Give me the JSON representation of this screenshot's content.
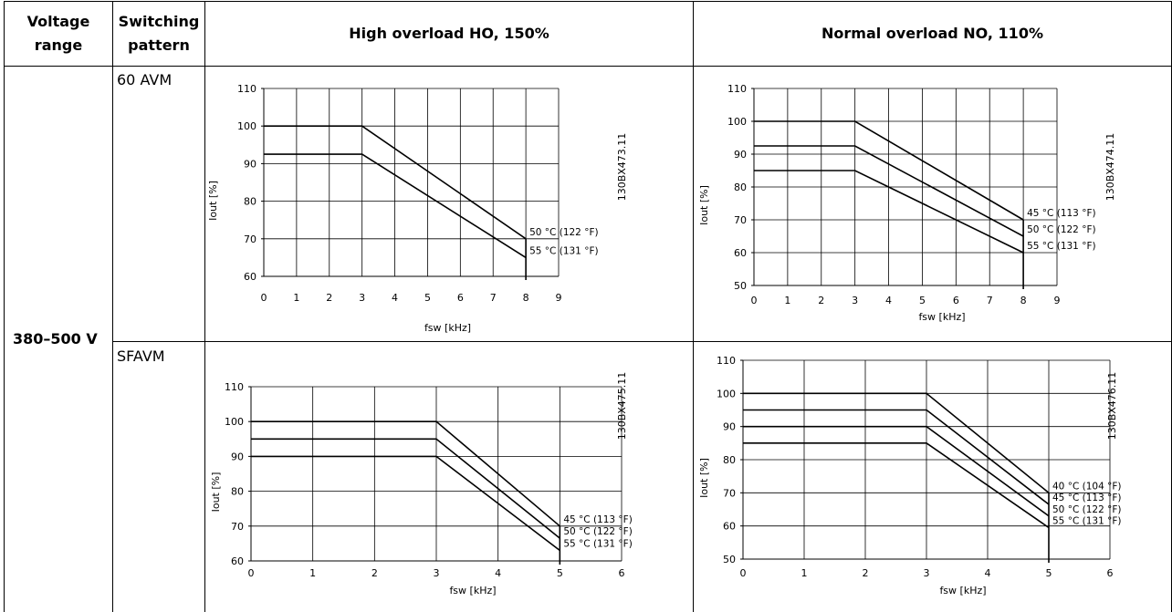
{
  "table": {
    "headers": {
      "voltage_range": [
        "Voltage",
        "range"
      ],
      "switching_pattern": [
        "Switching",
        "pattern"
      ],
      "high_overload": "High overload HO, 150%",
      "normal_overload": "Normal overload NO, 110%"
    },
    "voltage_range_value": "380–500 V",
    "patterns": [
      "60 AVM",
      "SFAVM"
    ]
  },
  "chart_data": [
    {
      "id": "ho-60avm",
      "type": "line",
      "code": "130BX473.11",
      "xlabel": "fsw [kHz]",
      "ylabel": "Iout [%]",
      "xlim": [
        0,
        9
      ],
      "ylim": [
        60,
        110
      ],
      "xticks": [
        0,
        1,
        2,
        3,
        4,
        5,
        6,
        7,
        8,
        9
      ],
      "yticks": [
        60,
        70,
        80,
        90,
        100,
        110
      ],
      "grid": true,
      "series": [
        {
          "name": "50 °C (122 °F)",
          "x": [
            0,
            3,
            8
          ],
          "y": [
            100,
            100,
            70
          ]
        },
        {
          "name": "55 °C (131 °F)",
          "x": [
            0,
            3,
            8
          ],
          "y": [
            92.5,
            92.5,
            65
          ]
        }
      ]
    },
    {
      "id": "no-60avm",
      "type": "line",
      "code": "130BX474.11",
      "xlabel": "fsw [kHz]",
      "ylabel": "Iout [%]",
      "xlim": [
        0,
        9
      ],
      "ylim": [
        50,
        110
      ],
      "xticks": [
        0,
        1,
        2,
        3,
        4,
        5,
        6,
        7,
        8,
        9
      ],
      "yticks": [
        50,
        60,
        70,
        80,
        90,
        100,
        110
      ],
      "grid": true,
      "series": [
        {
          "name": "45 °C (113 °F)",
          "x": [
            0,
            3,
            8
          ],
          "y": [
            100,
            100,
            70
          ]
        },
        {
          "name": "50 °C (122 °F)",
          "x": [
            0,
            3,
            8
          ],
          "y": [
            92.5,
            92.5,
            65
          ]
        },
        {
          "name": "55 °C (131 °F)",
          "x": [
            0,
            3,
            8
          ],
          "y": [
            85,
            85,
            60
          ]
        }
      ]
    },
    {
      "id": "ho-sfavm",
      "type": "line",
      "code": "130BX475.11",
      "xlabel": "fsw [kHz]",
      "ylabel": "Iout [%]",
      "xlim": [
        0,
        6
      ],
      "ylim": [
        60,
        110
      ],
      "xticks": [
        0,
        1,
        2,
        3,
        4,
        5,
        6
      ],
      "yticks": [
        60,
        70,
        80,
        90,
        100,
        110
      ],
      "grid": true,
      "series": [
        {
          "name": "45 °C (113 °F)",
          "x": [
            0,
            3,
            5
          ],
          "y": [
            100,
            100,
            70
          ]
        },
        {
          "name": "50 °C (122 °F)",
          "x": [
            0,
            3,
            5
          ],
          "y": [
            95,
            95,
            66.5
          ]
        },
        {
          "name": "55 °C (131 °F)",
          "x": [
            0,
            3,
            5
          ],
          "y": [
            90,
            90,
            63
          ]
        }
      ]
    },
    {
      "id": "no-sfavm",
      "type": "line",
      "code": "130BX476.11",
      "xlabel": "fsw [kHz]",
      "ylabel": "Iout [%]",
      "xlim": [
        0,
        6
      ],
      "ylim": [
        50,
        110
      ],
      "xticks": [
        0,
        1,
        2,
        3,
        4,
        5,
        6
      ],
      "yticks": [
        50,
        60,
        70,
        80,
        90,
        100,
        110
      ],
      "grid": true,
      "series": [
        {
          "name": "40 °C (104 °F)",
          "x": [
            0,
            3,
            5
          ],
          "y": [
            100,
            100,
            70
          ]
        },
        {
          "name": "45 °C (113 °F)",
          "x": [
            0,
            3,
            5
          ],
          "y": [
            95,
            95,
            66.5
          ]
        },
        {
          "name": "50 °C (122 °F)",
          "x": [
            0,
            3,
            5
          ],
          "y": [
            90,
            90,
            63
          ]
        },
        {
          "name": "55 °C (131 °F)",
          "x": [
            0,
            3,
            5
          ],
          "y": [
            85,
            85,
            59.5
          ]
        }
      ]
    }
  ]
}
